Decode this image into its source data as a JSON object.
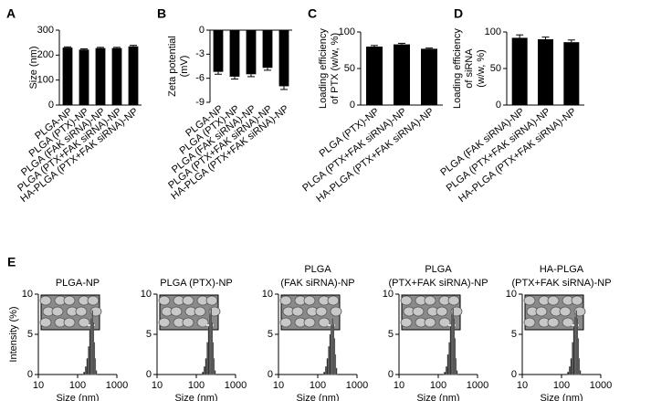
{
  "chart_data": [
    {
      "type": "bar",
      "panel": "A",
      "ylabel": [
        "Size (nm)"
      ],
      "categories": [
        "PLGA-NP",
        "PLGA (PTX)-NP",
        "PLGA (FAK siRNA)-NP",
        "PLGA (PTX+FAK siRNA)-NP",
        "HA-PLGA (PTX+FAK siRNA)-NP"
      ],
      "values": [
        230,
        222,
        228,
        228,
        235
      ],
      "errors": [
        3,
        3,
        3,
        3,
        4
      ],
      "color": "#000000",
      "ylim": [
        0,
        300
      ],
      "yticks": [
        0,
        100,
        200,
        300
      ]
    },
    {
      "type": "bar",
      "panel": "B",
      "ylabel": [
        "Zeta potential",
        "(mV)"
      ],
      "categories": [
        "PLGA-NP",
        "PLGA (PTX)-NP",
        "PLGA (FAK siRNA)-NP",
        "PLGA (PTX+FAK siRNA)-NP",
        "HA-PLGA (PTX+FAK siRNA)-NP"
      ],
      "values": [
        -5.2,
        -5.8,
        -5.5,
        -4.7,
        -7.0
      ],
      "errors": [
        0.3,
        0.3,
        0.3,
        0.3,
        0.4
      ],
      "color": "#000000",
      "ylim": [
        -9,
        0
      ],
      "yticks": [
        0,
        -3,
        -6,
        -9
      ]
    },
    {
      "type": "bar",
      "panel": "C",
      "ylabel": [
        "Loading efficiency",
        "of PTX (w/w, %)"
      ],
      "categories": [
        "PLGA (PTX)-NP",
        "PLGA (PTX+FAK siRNA)-NP",
        "HA-PLGA (PTX+FAK siRNA)-NP"
      ],
      "values": [
        80,
        83,
        77
      ],
      "errors": [
        1.5,
        1.5,
        1
      ],
      "color": "#000000",
      "ylim": [
        0,
        100
      ],
      "yticks": [
        0,
        50,
        100
      ]
    },
    {
      "type": "bar",
      "panel": "D",
      "ylabel": [
        "Loading efficiency",
        "of siRNA",
        "(w/w, %)"
      ],
      "categories": [
        "PLGA (FAK siRNA)-NP",
        "PLGA (PTX+FAK siRNA)-NP",
        "HA-PLGA (PTX+FAK siRNA)-NP"
      ],
      "values": [
        92,
        90,
        86
      ],
      "errors": [
        4,
        3,
        3
      ],
      "color": "#000000",
      "ylim": [
        0,
        100
      ],
      "yticks": [
        0,
        50,
        100
      ]
    },
    {
      "type": "histogram",
      "panel": "E",
      "title": [
        "PLGA-NP"
      ],
      "ylabel": [
        "Intensity (%)"
      ],
      "xlabel": "Size (nm)",
      "bins": [
        140,
        155,
        170,
        185,
        200,
        215,
        230,
        245,
        260,
        275,
        290,
        310
      ],
      "counts": [
        0.3,
        1,
        2,
        3.5,
        5.5,
        7,
        8,
        6.5,
        4,
        2,
        0.5
      ],
      "color": "#222222",
      "xlog": true,
      "xlim": [
        10,
        1000
      ],
      "xticks": [
        10,
        100,
        1000
      ],
      "ylim": [
        0,
        10
      ],
      "yticks": [
        0,
        5,
        10
      ]
    },
    {
      "type": "histogram",
      "title": [
        "PLGA (PTX)-NP"
      ],
      "xlabel": "Size (nm)",
      "bins": [
        140,
        155,
        170,
        185,
        200,
        215,
        230,
        245,
        260,
        275,
        290,
        310
      ],
      "counts": [
        0.3,
        1,
        2,
        4,
        6,
        7.5,
        8.2,
        6.5,
        4,
        2,
        0.5
      ],
      "color": "#222222",
      "xlog": true,
      "xlim": [
        10,
        1000
      ],
      "xticks": [
        10,
        100,
        1000
      ],
      "ylim": [
        0,
        10
      ],
      "yticks": [
        0,
        5,
        10
      ]
    },
    {
      "type": "histogram",
      "title": [
        "PLGA",
        "(FAK siRNA)-NP"
      ],
      "xlabel": "Size (nm)",
      "bins": [
        140,
        155,
        170,
        185,
        200,
        215,
        230,
        245,
        260,
        275,
        290,
        310
      ],
      "counts": [
        0.3,
        1,
        2,
        3.5,
        5,
        6.2,
        7,
        6.3,
        4.5,
        2.5,
        0.8
      ],
      "color": "#222222",
      "xlog": true,
      "xlim": [
        10,
        1000
      ],
      "xticks": [
        10,
        100,
        1000
      ],
      "ylim": [
        0,
        10
      ],
      "yticks": [
        0,
        5,
        10
      ]
    },
    {
      "type": "histogram",
      "title": [
        "PLGA",
        "(PTX+FAK  siRNA)-NP"
      ],
      "xlabel": "Size (nm)",
      "bins": [
        140,
        155,
        170,
        185,
        200,
        215,
        230,
        245,
        260,
        275,
        290,
        310
      ],
      "counts": [
        0.3,
        1,
        2.5,
        4,
        6,
        7.5,
        8.3,
        7,
        4.5,
        2,
        0.5
      ],
      "color": "#222222",
      "xlog": true,
      "xlim": [
        10,
        1000
      ],
      "xticks": [
        10,
        100,
        1000
      ],
      "ylim": [
        0,
        10
      ],
      "yticks": [
        0,
        5,
        10
      ]
    },
    {
      "type": "histogram",
      "title": [
        "HA-PLGA",
        "(PTX+FAK  siRNA)-NP"
      ],
      "xlabel": "Size (nm)",
      "bins": [
        140,
        155,
        170,
        185,
        200,
        215,
        230,
        245,
        260,
        275,
        290,
        310
      ],
      "counts": [
        0.3,
        1,
        2,
        4,
        6,
        7.2,
        8,
        7,
        4.5,
        2,
        0.5
      ],
      "color": "#222222",
      "xlog": true,
      "xlim": [
        10,
        1000
      ],
      "xticks": [
        10,
        100,
        1000
      ],
      "ylim": [
        0,
        10
      ],
      "yticks": [
        0,
        5,
        10
      ]
    }
  ]
}
